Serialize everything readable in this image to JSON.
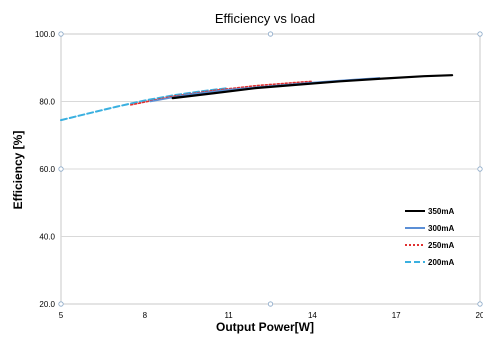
{
  "chart_data": {
    "type": "line",
    "title": "Efficiency vs load",
    "xlabel": "Output Power[W]",
    "ylabel": "Efficiency [%]",
    "xlim": [
      5,
      20
    ],
    "ylim": [
      20,
      100
    ],
    "x_ticks": [
      "5",
      "8",
      "11",
      "14",
      "17",
      "20"
    ],
    "y_ticks": [
      "20.0",
      "40.0",
      "60.0",
      "80.0",
      "100.0"
    ],
    "grid": "horizontal",
    "legend_position": "right",
    "series": [
      {
        "name": "350mA",
        "color": "#000000",
        "style": "solid",
        "points": [
          [
            9.0,
            81.0
          ],
          [
            10.5,
            82.5
          ],
          [
            12.0,
            84.0
          ],
          [
            13.5,
            85.0
          ],
          [
            15.0,
            86.0
          ],
          [
            16.5,
            86.8
          ],
          [
            18.0,
            87.5
          ],
          [
            19.0,
            87.8
          ]
        ]
      },
      {
        "name": "300mA",
        "color": "#5b8fd6",
        "style": "solid",
        "points": [
          [
            8.2,
            80.0
          ],
          [
            9.5,
            82.0
          ],
          [
            11.0,
            83.5
          ],
          [
            12.5,
            84.6
          ],
          [
            14.0,
            85.6
          ],
          [
            15.5,
            86.5
          ],
          [
            16.4,
            87.0
          ]
        ]
      },
      {
        "name": "250mA",
        "color": "#e03030",
        "style": "dotted",
        "points": [
          [
            7.5,
            79.0
          ],
          [
            9.0,
            81.5
          ],
          [
            10.5,
            83.3
          ],
          [
            12.0,
            84.7
          ],
          [
            13.5,
            85.7
          ],
          [
            14.0,
            86.0
          ]
        ]
      },
      {
        "name": "200mA",
        "color": "#3ab0e0",
        "style": "dashed",
        "points": [
          [
            5.0,
            74.5
          ],
          [
            6.0,
            76.5
          ],
          [
            7.0,
            78.5
          ],
          [
            8.0,
            80.3
          ],
          [
            9.0,
            81.8
          ],
          [
            10.0,
            83.0
          ],
          [
            11.0,
            84.0
          ]
        ]
      }
    ]
  }
}
